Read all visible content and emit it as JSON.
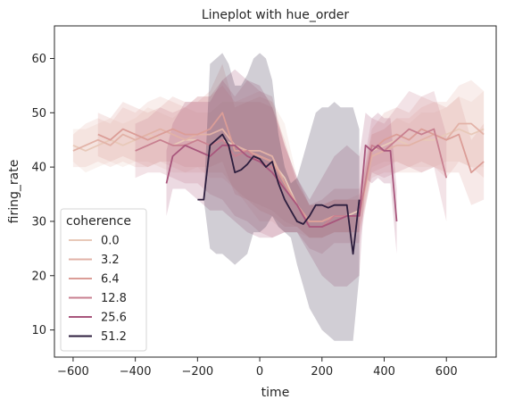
{
  "chart_data": {
    "type": "line",
    "title": "Lineplot with hue_order",
    "xlabel": "time",
    "ylabel": "firing_rate",
    "xlim": [
      -660,
      760
    ],
    "ylim": [
      5,
      66
    ],
    "xticks": [
      -600,
      -400,
      -200,
      0,
      200,
      400,
      600
    ],
    "yticks": [
      10,
      20,
      30,
      40,
      50,
      60
    ],
    "grid": false,
    "legend": {
      "title": "coherence",
      "placement": "lower-left"
    },
    "series": [
      {
        "name": "0.0",
        "color": "#e8c9b9",
        "x": [
          -600,
          -560,
          -520,
          -480,
          -440,
          -400,
          -360,
          -320,
          -280,
          -240,
          -200,
          -160,
          -120,
          -80,
          -40,
          0,
          40,
          80,
          120,
          160,
          200,
          240,
          280,
          320,
          360,
          400,
          440,
          480,
          520,
          560,
          600,
          640,
          680,
          720
        ],
        "y": [
          44,
          43,
          44,
          45,
          44,
          45,
          46,
          45,
          44,
          45,
          45,
          44,
          45,
          44,
          43,
          42,
          41,
          38,
          33,
          30,
          30,
          31,
          31,
          32,
          43,
          44,
          45,
          44,
          45,
          45,
          46,
          47,
          46,
          47
        ],
        "lo": [
          41,
          39,
          40,
          41,
          40,
          41,
          41,
          40,
          39,
          39,
          40,
          38,
          38,
          36,
          33,
          30,
          30,
          28,
          28,
          27,
          27,
          28,
          28,
          29,
          40,
          41,
          41,
          40,
          40,
          40,
          41,
          41,
          40,
          40
        ],
        "hi": [
          47,
          47,
          48,
          49,
          48,
          49,
          51,
          50,
          49,
          51,
          50,
          50,
          52,
          52,
          53,
          54,
          52,
          48,
          38,
          33,
          33,
          34,
          34,
          35,
          46,
          47,
          49,
          48,
          50,
          50,
          51,
          53,
          52,
          54
        ]
      },
      {
        "name": "3.2",
        "color": "#e2b2a7",
        "x": [
          -600,
          -560,
          -520,
          -480,
          -440,
          -400,
          -360,
          -320,
          -280,
          -240,
          -200,
          -160,
          -120,
          -80,
          -40,
          0,
          40,
          80,
          120,
          160,
          200,
          240,
          280,
          320,
          360,
          400,
          440,
          480,
          520,
          560,
          600,
          640,
          680,
          720
        ],
        "y": [
          43,
          44,
          45,
          44,
          46,
          45,
          46,
          47,
          46,
          45,
          46,
          46,
          47,
          44,
          43,
          43,
          42,
          37,
          33,
          30,
          30,
          31,
          31,
          31,
          42,
          43,
          44,
          44,
          45,
          46,
          45,
          48,
          48,
          46
        ],
        "lo": [
          40,
          40,
          41,
          40,
          41,
          40,
          40,
          41,
          40,
          39,
          39,
          39,
          39,
          36,
          34,
          33,
          32,
          30,
          29,
          27,
          27,
          28,
          28,
          28,
          38,
          39,
          39,
          39,
          39,
          40,
          38,
          41,
          40,
          38
        ],
        "hi": [
          46,
          48,
          49,
          48,
          51,
          50,
          52,
          53,
          52,
          51,
          53,
          53,
          55,
          52,
          52,
          53,
          52,
          44,
          37,
          33,
          33,
          34,
          34,
          34,
          46,
          47,
          49,
          49,
          51,
          52,
          52,
          55,
          56,
          54
        ]
      },
      {
        "name": "6.4",
        "color": "#db9d97",
        "x": [
          -520,
          -480,
          -440,
          -400,
          -360,
          -320,
          -280,
          -240,
          -200,
          -160,
          -120,
          -80,
          -40,
          0,
          40,
          80,
          120,
          160,
          200,
          240,
          280,
          320,
          360,
          400,
          440,
          480,
          520,
          560,
          600,
          640,
          680,
          720
        ],
        "y": [
          46,
          45,
          47,
          46,
          45,
          46,
          47,
          46,
          46,
          47,
          50,
          43,
          43,
          42,
          41,
          37,
          33,
          30,
          30,
          31,
          31,
          31,
          43,
          45,
          46,
          45,
          47,
          46,
          45,
          46,
          39,
          41
        ],
        "lo": [
          42,
          41,
          42,
          41,
          40,
          41,
          41,
          40,
          40,
          40,
          41,
          35,
          34,
          32,
          31,
          29,
          29,
          27,
          27,
          28,
          28,
          28,
          39,
          40,
          41,
          40,
          41,
          40,
          39,
          39,
          33,
          34
        ],
        "hi": [
          50,
          49,
          52,
          51,
          50,
          51,
          53,
          52,
          52,
          54,
          59,
          51,
          52,
          52,
          51,
          45,
          37,
          33,
          33,
          34,
          34,
          34,
          47,
          50,
          51,
          50,
          53,
          52,
          51,
          53,
          45,
          48
        ]
      },
      {
        "name": "12.8",
        "color": "#c88090",
        "x": [
          -400,
          -360,
          -320,
          -280,
          -240,
          -200,
          -160,
          -120,
          -80,
          -40,
          0,
          40,
          80,
          120,
          160,
          200,
          240,
          280,
          320,
          360,
          400,
          440,
          480,
          520,
          560,
          600
        ],
        "y": [
          43,
          44,
          45,
          44,
          44,
          45,
          44,
          45,
          42,
          43,
          41,
          40,
          36,
          33,
          29,
          29,
          31,
          31,
          31,
          44,
          43,
          45,
          47,
          46,
          47,
          38
        ],
        "lo": [
          38,
          39,
          39,
          38,
          37,
          37,
          35,
          34,
          31,
          30,
          28,
          27,
          28,
          28,
          25,
          24,
          26,
          26,
          26,
          39,
          38,
          39,
          40,
          39,
          40,
          30
        ],
        "hi": [
          48,
          49,
          51,
          50,
          51,
          53,
          53,
          56,
          53,
          56,
          54,
          53,
          44,
          38,
          33,
          34,
          36,
          36,
          36,
          49,
          48,
          51,
          54,
          53,
          54,
          46
        ]
      },
      {
        "name": "25.6",
        "color": "#a8567c",
        "x": [
          -300,
          -280,
          -240,
          -200,
          -160,
          -120,
          -80,
          -40,
          0,
          40,
          80,
          120,
          160,
          200,
          240,
          280,
          320,
          340,
          360,
          380,
          400,
          420,
          440
        ],
        "y": [
          37,
          42,
          44,
          43,
          42,
          44,
          44,
          42,
          41,
          39,
          36,
          33,
          29,
          29,
          30,
          31,
          31,
          44,
          43,
          44,
          43,
          43,
          30
        ],
        "lo": [
          31,
          36,
          36,
          34,
          32,
          32,
          30,
          28,
          27,
          27,
          28,
          28,
          24,
          20,
          18,
          18,
          20,
          38,
          37,
          38,
          37,
          37,
          24
        ],
        "hi": [
          43,
          48,
          52,
          52,
          52,
          56,
          58,
          56,
          55,
          51,
          44,
          38,
          34,
          38,
          42,
          44,
          42,
          50,
          49,
          50,
          49,
          49,
          36
        ]
      },
      {
        "name": "51.2",
        "color": "#2d1e3e",
        "x": [
          -200,
          -180,
          -160,
          -140,
          -120,
          -100,
          -80,
          -60,
          -40,
          -20,
          0,
          20,
          40,
          60,
          80,
          100,
          120,
          140,
          160,
          180,
          200,
          220,
          240,
          260,
          280,
          300,
          320
        ],
        "y": [
          34,
          34,
          44,
          45,
          46,
          44,
          39,
          39.5,
          40.5,
          42,
          41.5,
          40,
          41,
          37,
          34,
          32,
          30,
          29.5,
          31,
          33,
          33,
          32.5,
          33,
          33,
          33,
          24,
          34
        ],
        "lo": [
          34,
          34,
          25,
          24,
          24,
          23,
          22,
          23,
          24,
          28,
          28,
          29,
          31,
          29,
          28,
          27,
          22,
          18,
          14,
          12,
          10,
          9,
          8,
          8,
          8,
          8,
          20
        ],
        "hi": [
          34,
          34,
          59,
          60,
          61,
          59,
          55,
          55,
          57,
          60,
          61,
          60,
          56,
          46,
          40,
          37,
          38,
          42,
          46,
          50,
          51,
          51,
          52,
          51,
          51,
          51,
          47
        ]
      }
    ]
  }
}
